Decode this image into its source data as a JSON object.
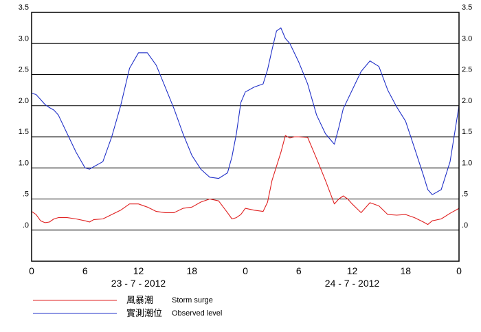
{
  "chart_data": {
    "type": "line",
    "title": "",
    "xlabel": "",
    "ylabel": "",
    "ylim": [
      -0.5,
      3.5
    ],
    "xlim": [
      0,
      48
    ],
    "y_ticks": [
      {
        "v": 0.0,
        "label": ".0"
      },
      {
        "v": 0.5,
        "label": ".5"
      },
      {
        "v": 1.0,
        "label": "1.0"
      },
      {
        "v": 1.5,
        "label": "1.5"
      },
      {
        "v": 2.0,
        "label": "2.0"
      },
      {
        "v": 2.5,
        "label": "2.5"
      },
      {
        "v": 3.0,
        "label": "3.0"
      },
      {
        "v": 3.5,
        "label": "3.5"
      }
    ],
    "x_ticks": [
      {
        "v": 0,
        "label": "0"
      },
      {
        "v": 6,
        "label": "6"
      },
      {
        "v": 12,
        "label": "12"
      },
      {
        "v": 18,
        "label": "18"
      },
      {
        "v": 24,
        "label": "0"
      },
      {
        "v": 30,
        "label": "6"
      },
      {
        "v": 36,
        "label": "12"
      },
      {
        "v": 42,
        "label": "18"
      },
      {
        "v": 48,
        "label": "0"
      }
    ],
    "dates": [
      {
        "v": 12,
        "label": "23 - 7 - 2012"
      },
      {
        "v": 36,
        "label": "24 - 7 - 2012"
      }
    ],
    "grid": true,
    "legend_position": "bottom-left",
    "series": [
      {
        "name": "風暴潮",
        "name_en": "Storm surge",
        "color": "#e02020",
        "x": [
          0,
          0.5,
          1,
          1.5,
          2,
          2.5,
          3,
          4,
          5,
          6,
          6.5,
          7,
          8,
          9,
          10,
          11,
          12,
          13,
          14,
          15,
          16,
          17,
          18,
          19,
          20,
          21,
          22,
          22.5,
          23,
          23.5,
          24,
          25,
          26,
          26.5,
          27,
          28,
          28.5,
          29,
          29.5,
          30,
          31,
          32,
          33,
          34,
          34.5,
          35,
          35.5,
          36,
          37,
          38,
          39,
          40,
          41,
          42,
          43,
          44,
          44.5,
          45,
          46,
          47,
          48
        ],
        "y": [
          0.3,
          0.25,
          0.15,
          0.12,
          0.13,
          0.18,
          0.2,
          0.2,
          0.18,
          0.15,
          0.13,
          0.17,
          0.18,
          0.25,
          0.32,
          0.42,
          0.42,
          0.37,
          0.3,
          0.28,
          0.28,
          0.35,
          0.37,
          0.45,
          0.5,
          0.47,
          0.28,
          0.18,
          0.2,
          0.25,
          0.35,
          0.32,
          0.3,
          0.45,
          0.8,
          1.25,
          1.52,
          1.48,
          1.5,
          1.5,
          1.49,
          1.15,
          0.8,
          0.42,
          0.5,
          0.55,
          0.5,
          0.42,
          0.28,
          0.44,
          0.39,
          0.25,
          0.24,
          0.25,
          0.2,
          0.13,
          0.09,
          0.15,
          0.18,
          0.27,
          0.35
        ]
      },
      {
        "name": "實測潮位",
        "name_en": "Observed level",
        "color": "#2030c8",
        "x": [
          0,
          0.5,
          1,
          1.5,
          2,
          2.5,
          3,
          4,
          5,
          6,
          6.5,
          7,
          8,
          9,
          10,
          11,
          12,
          13,
          14,
          15,
          16,
          17,
          18,
          19,
          20,
          21,
          22,
          22.5,
          23,
          23.5,
          24,
          25,
          26,
          26.5,
          27,
          27.5,
          28,
          28.5,
          29,
          30,
          31,
          32,
          33,
          34,
          34.5,
          35,
          35.5,
          36,
          37,
          38,
          39,
          40,
          41,
          42,
          43,
          44,
          44.5,
          45,
          46,
          47,
          48
        ],
        "y": [
          2.2,
          2.18,
          2.1,
          2.02,
          1.97,
          1.93,
          1.85,
          1.55,
          1.25,
          1.0,
          0.98,
          1.02,
          1.1,
          1.5,
          2.0,
          2.6,
          2.85,
          2.85,
          2.65,
          2.3,
          1.95,
          1.55,
          1.2,
          0.98,
          0.85,
          0.83,
          0.92,
          1.18,
          1.55,
          2.05,
          2.22,
          2.3,
          2.35,
          2.58,
          2.9,
          3.2,
          3.25,
          3.08,
          3.0,
          2.7,
          2.35,
          1.85,
          1.55,
          1.38,
          1.65,
          1.95,
          2.1,
          2.25,
          2.55,
          2.72,
          2.63,
          2.25,
          1.98,
          1.75,
          1.32,
          0.88,
          0.65,
          0.57,
          0.65,
          1.1,
          2.0
        ]
      }
    ]
  }
}
